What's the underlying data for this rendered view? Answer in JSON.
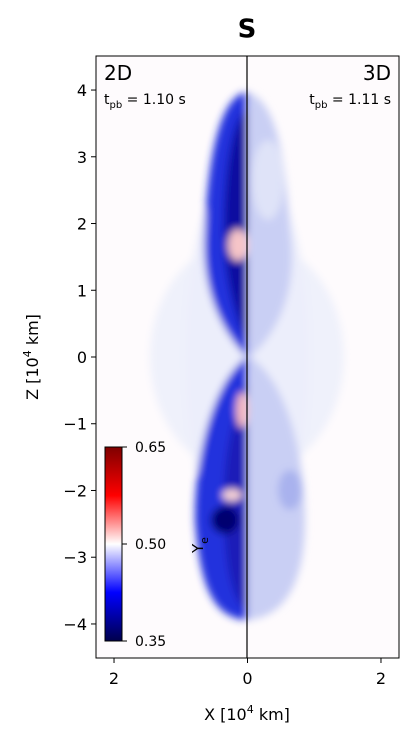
{
  "chart_data": {
    "type": "image",
    "title": "S",
    "x_label": {
      "base": "X [10",
      "sup": "4",
      "rest": " km]"
    },
    "y_label": {
      "base": "Z [10",
      "sup": "4",
      "rest": " km]"
    },
    "xlim": [
      -2.27,
      2.27
    ],
    "ylim": [
      -4.51,
      4.51
    ],
    "xticks": [
      {
        "value": -2,
        "label": "2"
      },
      0,
      2
    ],
    "yticks": [
      {
        "value": -4,
        "label": "−4"
      },
      {
        "value": -3,
        "label": "−3"
      },
      {
        "value": -2,
        "label": "−2"
      },
      {
        "value": -1,
        "label": "−1"
      },
      0,
      1,
      2,
      3,
      4
    ],
    "panels": [
      {
        "label": "2D",
        "time": {
          "base": "t",
          "sub": "pb",
          "rest": " = 1.10 s"
        }
      },
      {
        "label": "3D",
        "time": {
          "base": "t",
          "sub": "pb",
          "rest": " = 1.11 s"
        }
      }
    ],
    "colorbar": {
      "label": {
        "base": "Y",
        "sub": "e"
      },
      "lim": [
        0.35,
        0.65
      ],
      "ticks": [
        0.35,
        {
          "value": 0.5,
          "label": "0.50"
        },
        0.65
      ],
      "colors": [
        "#00004c",
        "#0000ff",
        "#ffffff",
        "#ff0000",
        "#7f0000"
      ]
    }
  }
}
